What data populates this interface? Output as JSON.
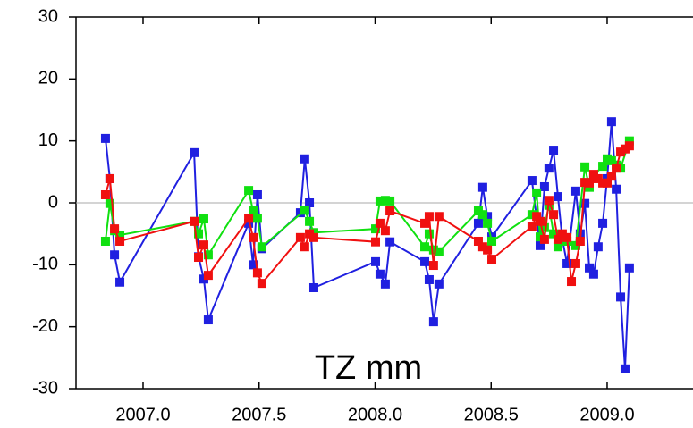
{
  "chart_data": {
    "type": "line",
    "annotation": "TZ mm",
    "xlim": [
      2006.711,
      2009.37
    ],
    "ylim": [
      -30,
      30
    ],
    "xticks": [
      {
        "value": 2007,
        "label": "2007.0"
      },
      {
        "value": 2007.5,
        "label": "2007.5"
      },
      {
        "value": 2008,
        "label": "2008.0"
      },
      {
        "value": 2008.5,
        "label": "2008.5"
      },
      {
        "value": 2009,
        "label": "2009.0"
      }
    ],
    "yticks": [
      -30,
      -20,
      -10,
      0,
      10,
      20,
      30
    ],
    "zero_line": true,
    "series": [
      {
        "color": "#2020e0",
        "x": [
          2006.838,
          2006.857,
          2006.877,
          2006.9,
          2007.22,
          2007.239,
          2007.262,
          2007.281,
          2007.455,
          2007.474,
          2007.493,
          2007.512,
          2007.678,
          2007.697,
          2007.717,
          2007.736,
          2008.002,
          2008.021,
          2008.044,
          2008.064,
          2008.214,
          2008.233,
          2008.252,
          2008.275,
          2008.445,
          2008.464,
          2008.484,
          2008.503,
          2008.676,
          2008.711,
          2008.73,
          2008.749,
          2008.769,
          2008.788,
          2008.807,
          2008.827,
          2008.865,
          2008.884,
          2008.904,
          2008.923,
          2008.942,
          2008.961,
          2008.981,
          2009.0,
          2009.019,
          2009.039,
          2009.058,
          2009.077,
          2009.096
        ],
        "values": [
          10.4,
          3.9,
          -8.4,
          -12.8,
          8.1,
          -8.7,
          -12.3,
          -18.9,
          -3.3,
          -10,
          1.3,
          -7.4,
          -1.6,
          7.1,
          0,
          -13.7,
          -9.5,
          -11.5,
          -13.1,
          -6.3,
          -9.5,
          -12.4,
          -19.2,
          -13.1,
          -3.3,
          2.5,
          -2.2,
          -5.5,
          3.6,
          -6.9,
          2.6,
          5.6,
          8.5,
          1,
          -5.9,
          -9.8,
          1.9,
          -5,
          -0.1,
          -10.5,
          -11.5,
          -7.1,
          -3.3,
          3.9,
          13.1,
          2.2,
          -15.2,
          -26.8,
          -10.5
        ]
      },
      {
        "color": "#10e010",
        "x": [
          2006.838,
          2006.857,
          2006.877,
          2006.9,
          2007.22,
          2007.239,
          2007.262,
          2007.281,
          2007.455,
          2007.474,
          2007.493,
          2007.512,
          2007.697,
          2007.717,
          2007.736,
          2008.002,
          2008.021,
          2008.044,
          2008.064,
          2008.214,
          2008.233,
          2008.252,
          2008.275,
          2008.445,
          2008.464,
          2008.484,
          2008.503,
          2008.676,
          2008.696,
          2008.711,
          2008.73,
          2008.749,
          2008.769,
          2008.788,
          2008.827,
          2008.865,
          2008.904,
          2008.923,
          2008.942,
          2008.981,
          2009.0,
          2009.019,
          2009.039,
          2009.058,
          2009.096
        ],
        "values": [
          -6.2,
          -0.1,
          -4.5,
          -5.2,
          -3,
          -5,
          -2.6,
          -8.4,
          2,
          -1.3,
          -2.5,
          -7.1,
          -1.2,
          -3,
          -4.8,
          -4.2,
          0.3,
          0.4,
          0.3,
          -7.1,
          -5,
          -7.6,
          -7.9,
          -1.3,
          -1.9,
          -3.3,
          -6.2,
          -1.9,
          1.6,
          -5.5,
          -4,
          -0.4,
          -5,
          -7.1,
          -6.2,
          -6.9,
          5.8,
          2.5,
          4.5,
          5.9,
          7.1,
          6.8,
          6.1,
          5.6,
          10
        ]
      },
      {
        "color": "#f01010",
        "x": [
          2006.838,
          2006.857,
          2006.877,
          2006.9,
          2007.22,
          2007.239,
          2007.262,
          2007.281,
          2007.455,
          2007.474,
          2007.493,
          2007.512,
          2007.678,
          2007.697,
          2007.717,
          2007.736,
          2008.002,
          2008.021,
          2008.044,
          2008.064,
          2008.214,
          2008.233,
          2008.252,
          2008.275,
          2008.445,
          2008.464,
          2008.484,
          2008.503,
          2008.676,
          2008.696,
          2008.711,
          2008.73,
          2008.749,
          2008.769,
          2008.788,
          2008.807,
          2008.827,
          2008.846,
          2008.865,
          2008.884,
          2008.904,
          2008.923,
          2008.942,
          2008.961,
          2008.981,
          2009.0,
          2009.019,
          2009.039,
          2009.058,
          2009.077,
          2009.096
        ],
        "values": [
          1.3,
          3.9,
          -4.2,
          -6.2,
          -3,
          -8.8,
          -6.8,
          -11.7,
          -2.5,
          -5.6,
          -11.3,
          -13,
          -5.6,
          -7.1,
          -5,
          -5.6,
          -6.3,
          -3.3,
          -4.5,
          -1.3,
          -3.3,
          -2.2,
          -10.1,
          -2.2,
          -6.2,
          -7.1,
          -7.6,
          -9.1,
          -3.8,
          -2.2,
          -3,
          -5.9,
          0.4,
          -1.9,
          -5.9,
          -5,
          -5.6,
          -12.7,
          -9.8,
          -6.2,
          3.3,
          3.2,
          4.6,
          3.9,
          3.2,
          3.2,
          4.3,
          5.6,
          8.2,
          8.7,
          9.2
        ]
      }
    ]
  }
}
